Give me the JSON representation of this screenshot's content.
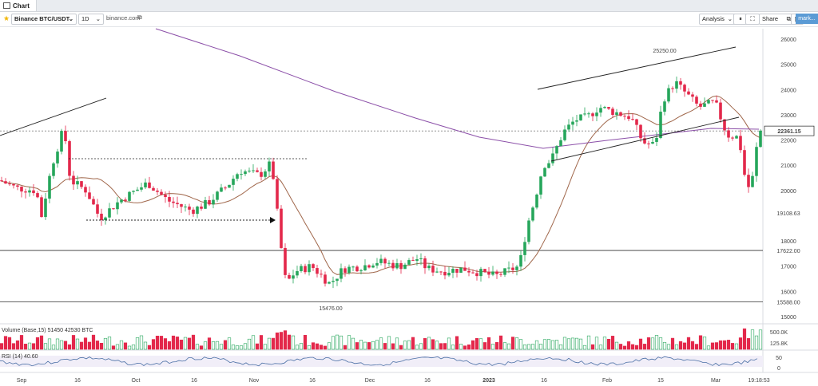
{
  "tab": {
    "title": "Chart"
  },
  "toolbar": {
    "symbol": "Binance BTC/USDT",
    "interval": "1D",
    "source_link": "binance.com",
    "analysis": "Analysis",
    "share": "Share",
    "right_tag": "mark..."
  },
  "chart_data": {
    "type": "candlestick",
    "price_axis": {
      "min": 15000,
      "max": 26000,
      "ticks": [
        26000,
        25000,
        24000,
        23000,
        22000,
        21000,
        20000,
        18000,
        17000,
        16000,
        15000
      ]
    },
    "price_labels": [
      "19108.63",
      "17622.00",
      "15588.00"
    ],
    "current_price": "22361.15",
    "time_labels": [
      "Sep",
      "16",
      "Oct",
      "16",
      "Nov",
      "16",
      "Dec",
      "16",
      "2023",
      "16",
      "Feb",
      "15",
      "Mar"
    ],
    "time_label_last": "19:18:53",
    "annotations": [
      {
        "text": "25250.00"
      },
      {
        "text": "15476.00"
      }
    ],
    "volume_panel": {
      "label": "Volume (Base,15) 51450 42530 BTC",
      "ticks": [
        "500.0K",
        "125.8K"
      ]
    },
    "rsi_panel": {
      "label": "RSI (14) 40.60",
      "ticks": [
        "50",
        "0"
      ]
    },
    "colors": {
      "up": "#26a65b",
      "down": "#e3284b",
      "ma_short": "#a0674b",
      "ma_long": "#8b4fa8"
    }
  }
}
